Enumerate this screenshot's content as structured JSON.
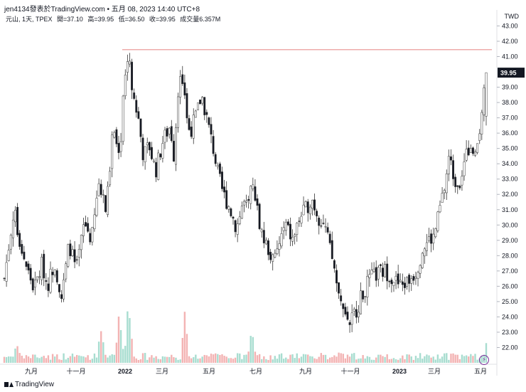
{
  "header": {
    "author": "jen4134發表於TradingView.com • 五月 08, 2023 14:40 UTC+8"
  },
  "legend": {
    "symbol": "元山, 1天, TPEX",
    "open": "開=37.10",
    "high": "高=39.95",
    "low": "低=36.50",
    "close": "收=39.95",
    "volume": "成交量6.357M"
  },
  "currency": "TWD",
  "footer": {
    "brand": "TradingView"
  },
  "colors": {
    "up": "#ffffff",
    "down": "#131722",
    "candle_border": "#555555",
    "vol_up": "#a8ddd0",
    "vol_down": "#f3b3b3",
    "hline": "#e8908f",
    "last_price_bg": "#131722"
  },
  "icons": [
    "tradingview-logo-icon",
    "lightning-icon"
  ],
  "chart_data": {
    "type": "candlestick",
    "symbol": "元山",
    "interval": "1天",
    "exchange": "TPEX",
    "ylim": [
      21.0,
      43.3
    ],
    "y_ticks": [
      "43.00",
      "42.00",
      "41.00",
      "39.00",
      "38.00",
      "37.00",
      "36.00",
      "35.00",
      "34.00",
      "33.00",
      "32.00",
      "31.00",
      "30.00",
      "29.00",
      "28.00",
      "27.00",
      "26.00",
      "25.00",
      "24.00",
      "23.00",
      "22.00"
    ],
    "last_price": "39.95",
    "x_ticks": [
      "九月",
      "十一月",
      "2022",
      "三月",
      "五月",
      "七月",
      "九月",
      "十一月",
      "2023",
      "三月",
      "五月"
    ],
    "horizontal_line": 41.45,
    "price_path": [
      [
        "2021-07-15",
        26.5
      ],
      [
        "2021-07-28",
        31.0
      ],
      [
        "2021-08-05",
        29.0
      ],
      [
        "2021-08-15",
        27.2
      ],
      [
        "2021-08-25",
        25.8
      ],
      [
        "2021-09-05",
        27.5
      ],
      [
        "2021-09-12",
        26.0
      ],
      [
        "2021-09-22",
        27.6
      ],
      [
        "2021-10-02",
        25.2
      ],
      [
        "2021-10-12",
        28.8
      ],
      [
        "2021-10-22",
        27.0
      ],
      [
        "2021-11-02",
        30.2
      ],
      [
        "2021-11-12",
        29.0
      ],
      [
        "2021-11-22",
        32.8
      ],
      [
        "2021-12-02",
        31.0
      ],
      [
        "2021-12-12",
        36.5
      ],
      [
        "2021-12-20",
        34.0
      ],
      [
        "2021-12-26",
        39.0
      ],
      [
        "2022-01-02",
        41.4
      ],
      [
        "2022-01-08",
        38.5
      ],
      [
        "2022-01-15",
        37.0
      ],
      [
        "2022-01-22",
        34.5
      ],
      [
        "2022-01-30",
        35.2
      ],
      [
        "2022-02-08",
        33.5
      ],
      [
        "2022-02-18",
        35.5
      ],
      [
        "2022-02-28",
        36.5
      ],
      [
        "2022-03-05",
        34.5
      ],
      [
        "2022-03-12",
        39.8
      ],
      [
        "2022-03-20",
        38.0
      ],
      [
        "2022-03-28",
        36.2
      ],
      [
        "2022-04-05",
        37.2
      ],
      [
        "2022-04-12",
        38.5
      ],
      [
        "2022-04-20",
        36.8
      ],
      [
        "2022-04-28",
        35.0
      ],
      [
        "2022-05-05",
        33.2
      ],
      [
        "2022-05-12",
        32.0
      ],
      [
        "2022-05-20",
        31.2
      ],
      [
        "2022-05-30",
        29.8
      ],
      [
        "2022-06-08",
        31.5
      ],
      [
        "2022-06-15",
        31.0
      ],
      [
        "2022-06-22",
        33.0
      ],
      [
        "2022-06-28",
        30.8
      ],
      [
        "2022-07-05",
        29.2
      ],
      [
        "2022-07-12",
        28.5
      ],
      [
        "2022-07-20",
        27.5
      ],
      [
        "2022-07-28",
        28.8
      ],
      [
        "2022-08-05",
        30.0
      ],
      [
        "2022-08-15",
        29.0
      ],
      [
        "2022-08-25",
        30.5
      ],
      [
        "2022-09-02",
        31.0
      ],
      [
        "2022-09-10",
        31.8
      ],
      [
        "2022-09-20",
        30.5
      ],
      [
        "2022-09-28",
        30.0
      ],
      [
        "2022-10-05",
        28.5
      ],
      [
        "2022-10-12",
        27.0
      ],
      [
        "2022-10-18",
        25.0
      ],
      [
        "2022-10-25",
        24.5
      ],
      [
        "2022-11-01",
        23.6
      ],
      [
        "2022-11-08",
        24.2
      ],
      [
        "2022-11-15",
        25.0
      ],
      [
        "2022-11-22",
        25.8
      ],
      [
        "2022-11-30",
        26.5
      ],
      [
        "2022-12-10",
        26.8
      ],
      [
        "2022-12-20",
        27.0
      ],
      [
        "2022-12-30",
        26.6
      ],
      [
        "2023-01-10",
        26.0
      ],
      [
        "2023-01-20",
        26.3
      ],
      [
        "2023-02-01",
        27.0
      ],
      [
        "2023-02-10",
        28.5
      ],
      [
        "2023-02-18",
        29.0
      ],
      [
        "2023-02-25",
        29.2
      ],
      [
        "2023-03-05",
        31.0
      ],
      [
        "2023-03-12",
        32.5
      ],
      [
        "2023-03-18",
        34.5
      ],
      [
        "2023-03-25",
        33.0
      ],
      [
        "2023-04-01",
        32.8
      ],
      [
        "2023-04-08",
        34.0
      ],
      [
        "2023-04-15",
        35.2
      ],
      [
        "2023-04-22",
        34.0
      ],
      [
        "2023-04-29",
        36.5
      ],
      [
        "2023-05-08",
        39.95
      ]
    ],
    "volume_spikes": [
      [
        "2021-08-01",
        0.35
      ],
      [
        "2021-11-25",
        0.62
      ],
      [
        "2021-12-20",
        0.84
      ],
      [
        "2022-01-02",
        1.0
      ],
      [
        "2022-03-20",
        0.78
      ],
      [
        "2022-06-20",
        0.48
      ],
      [
        "2022-10-18",
        0.2
      ],
      [
        "2023-04-15",
        0.15
      ],
      [
        "2023-05-08",
        0.28
      ]
    ]
  }
}
